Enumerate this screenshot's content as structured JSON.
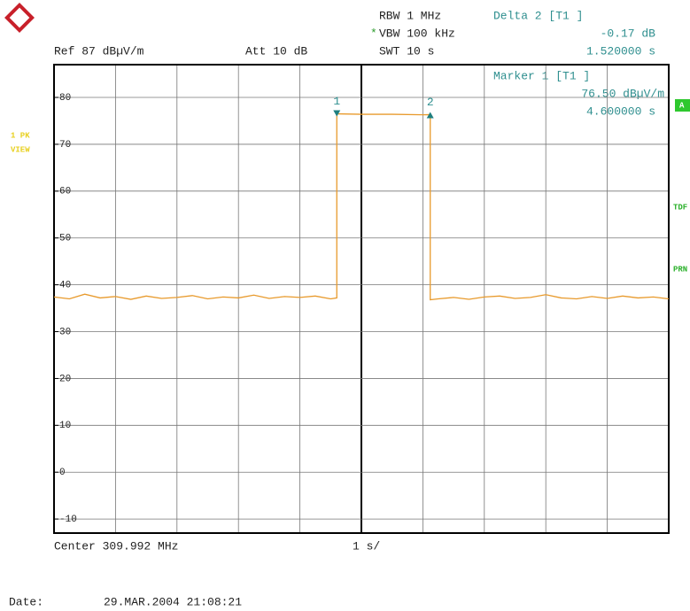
{
  "header": {
    "rbw": "RBW 1 MHz",
    "vbw_flag": "*",
    "vbw": "VBW 100 kHz",
    "swt": "SWT 10 s",
    "ref": "Ref  87 dBµV/m",
    "att": "Att  10 dB",
    "delta_label": "Delta 2 [T1 ]",
    "delta_value": "-0.17 dB",
    "delta_time": "1.520000 s",
    "marker_label": "Marker 1 [T1 ]",
    "marker_value": "76.50 dBµV/m",
    "marker_time": "4.600000 s"
  },
  "side": {
    "trace": "1 PK",
    "view": "VIEW",
    "a": "A",
    "tdf": "TDF",
    "prn": "PRN"
  },
  "footer": {
    "center": "Center 309.992 MHz",
    "span": "1 s/",
    "date_label": "Date:",
    "date": "29.MAR.2004  21:08:21"
  },
  "chart_data": {
    "type": "line",
    "color": "#e89a2c",
    "x": [
      0,
      0.25,
      0.5,
      0.75,
      1,
      1.25,
      1.5,
      1.75,
      2,
      2.25,
      2.5,
      2.75,
      3,
      3.25,
      3.5,
      3.75,
      4,
      4.25,
      4.5,
      4.6,
      4.6,
      5,
      5.5,
      6,
      6.12,
      6.12,
      6.25,
      6.5,
      6.75,
      7,
      7.25,
      7.5,
      7.75,
      8,
      8.25,
      8.5,
      8.75,
      9,
      9.25,
      9.5,
      9.75,
      10
    ],
    "values": [
      37.4,
      37.0,
      38.0,
      37.2,
      37.5,
      36.9,
      37.6,
      37.1,
      37.3,
      37.7,
      37.0,
      37.4,
      37.2,
      37.8,
      37.1,
      37.5,
      37.3,
      37.6,
      37.0,
      37.2,
      76.5,
      76.4,
      76.4,
      76.3,
      76.33,
      36.8,
      37.0,
      37.3,
      36.9,
      37.4,
      37.6,
      37.1,
      37.3,
      37.9,
      37.2,
      37.0,
      37.5,
      37.1,
      37.6,
      37.2,
      37.4,
      37.0
    ],
    "markers": [
      {
        "label": "1",
        "x": 4.6,
        "y": 76.5
      },
      {
        "label": "2",
        "x": 6.12,
        "y": 76.33
      }
    ],
    "xlim": [
      0,
      10
    ],
    "xticks": [
      0,
      1,
      2,
      3,
      4,
      5,
      6,
      7,
      8,
      9,
      10
    ],
    "ylim": [
      -13,
      87
    ],
    "yticks": [
      80,
      70,
      60,
      50,
      40,
      30,
      20,
      10,
      0,
      -10
    ],
    "grid": true
  }
}
